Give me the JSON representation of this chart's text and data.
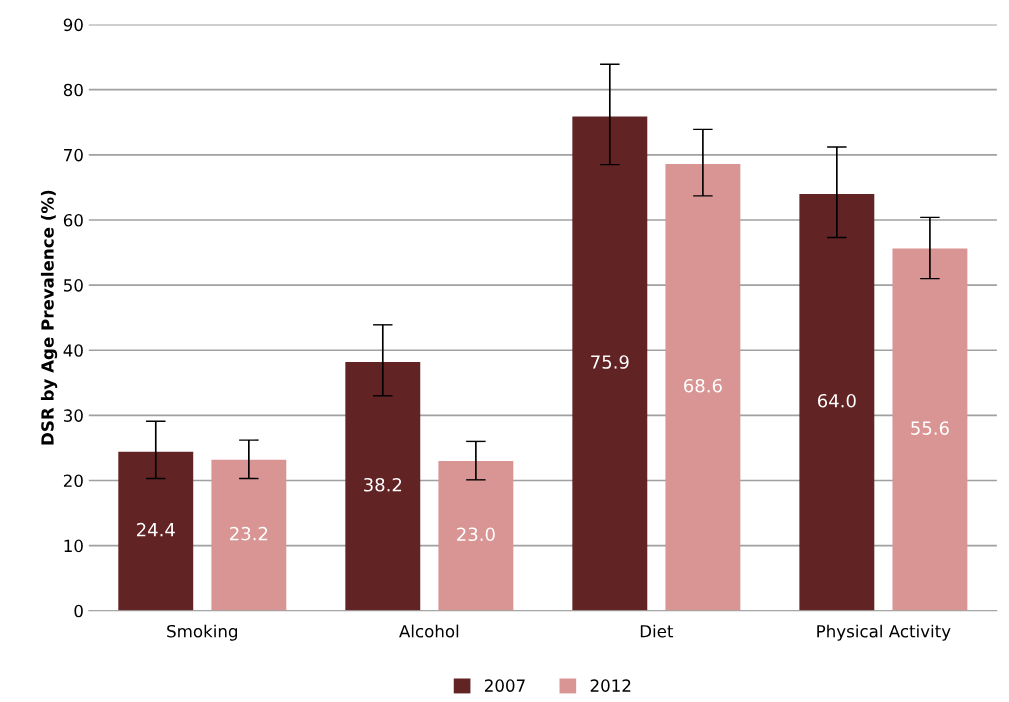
{
  "chart_data": {
    "type": "bar",
    "ylabel": "DSR by Age Prevalence (%)",
    "categories": [
      "Smoking",
      "Alcohol",
      "Diet",
      "Physical Activity"
    ],
    "series": [
      {
        "name": "2007",
        "color": "#622324",
        "values": [
          24.4,
          38.2,
          75.9,
          64.0
        ],
        "errors": [
          [
            20.3,
            29.1
          ],
          [
            33.0,
            43.9
          ],
          [
            68.5,
            83.9
          ],
          [
            57.3,
            71.2
          ]
        ],
        "value_labels": [
          "24.4",
          "38.2",
          "75.9",
          "64.0"
        ]
      },
      {
        "name": "2012",
        "color": "#d99594",
        "values": [
          23.2,
          23.0,
          68.6,
          55.6
        ],
        "errors": [
          [
            20.3,
            26.2
          ],
          [
            20.1,
            26.0
          ],
          [
            63.7,
            73.9
          ],
          [
            51.0,
            60.4
          ]
        ],
        "value_labels": [
          "23.2",
          "23.0",
          "68.6",
          "55.6"
        ]
      }
    ],
    "ylim": [
      0,
      90
    ],
    "yticks": [
      0,
      10,
      20,
      30,
      40,
      50,
      60,
      70,
      80,
      90
    ],
    "grid": "y",
    "legend": "bottom"
  }
}
